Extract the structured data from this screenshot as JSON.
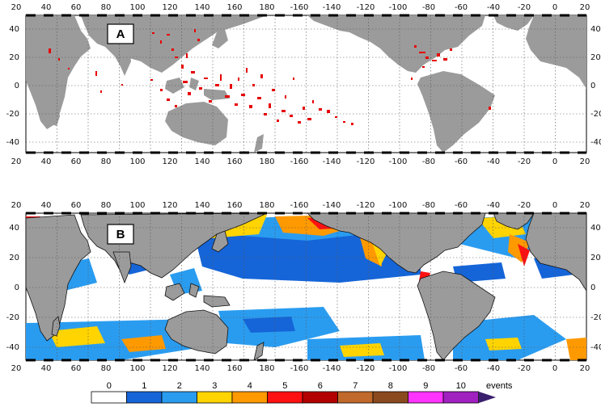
{
  "panels": [
    {
      "label": "A",
      "x_ticks": [
        "20",
        "40",
        "60",
        "80",
        "100",
        "120",
        "140",
        "160",
        "180",
        "-160",
        "-140",
        "-120",
        "-100",
        "-80",
        "-60",
        "-40",
        "-20",
        "0",
        "20"
      ],
      "y_ticks": [
        "40",
        "20",
        "0",
        "-20",
        "-40"
      ]
    },
    {
      "label": "B",
      "x_ticks": [
        "20",
        "40",
        "60",
        "80",
        "100",
        "120",
        "140",
        "160",
        "180",
        "-160",
        "-140",
        "-120",
        "-100",
        "-80",
        "-60",
        "-40",
        "-20",
        "0",
        "20"
      ],
      "y_ticks": [
        "40",
        "20",
        "0",
        "-20",
        "-40"
      ]
    }
  ],
  "colorbar": {
    "unit": "events",
    "labels": [
      "0",
      "1",
      "2",
      "3",
      "4",
      "5",
      "6",
      "7",
      "8",
      "9",
      "10"
    ],
    "colors": [
      "#ffffff",
      "#1565d8",
      "#2a9cf0",
      "#ffd400",
      "#ff9900",
      "#ff1111",
      "#b30000",
      "#c0692a",
      "#8a4a1e",
      "#ff33ff",
      "#a020c0"
    ],
    "arrow_color": "#3a1f6e"
  },
  "colors": {
    "land": "#9b9b9b",
    "ocean": "#ffffff",
    "event_marker": "#e60000",
    "grid": "#555555"
  }
}
